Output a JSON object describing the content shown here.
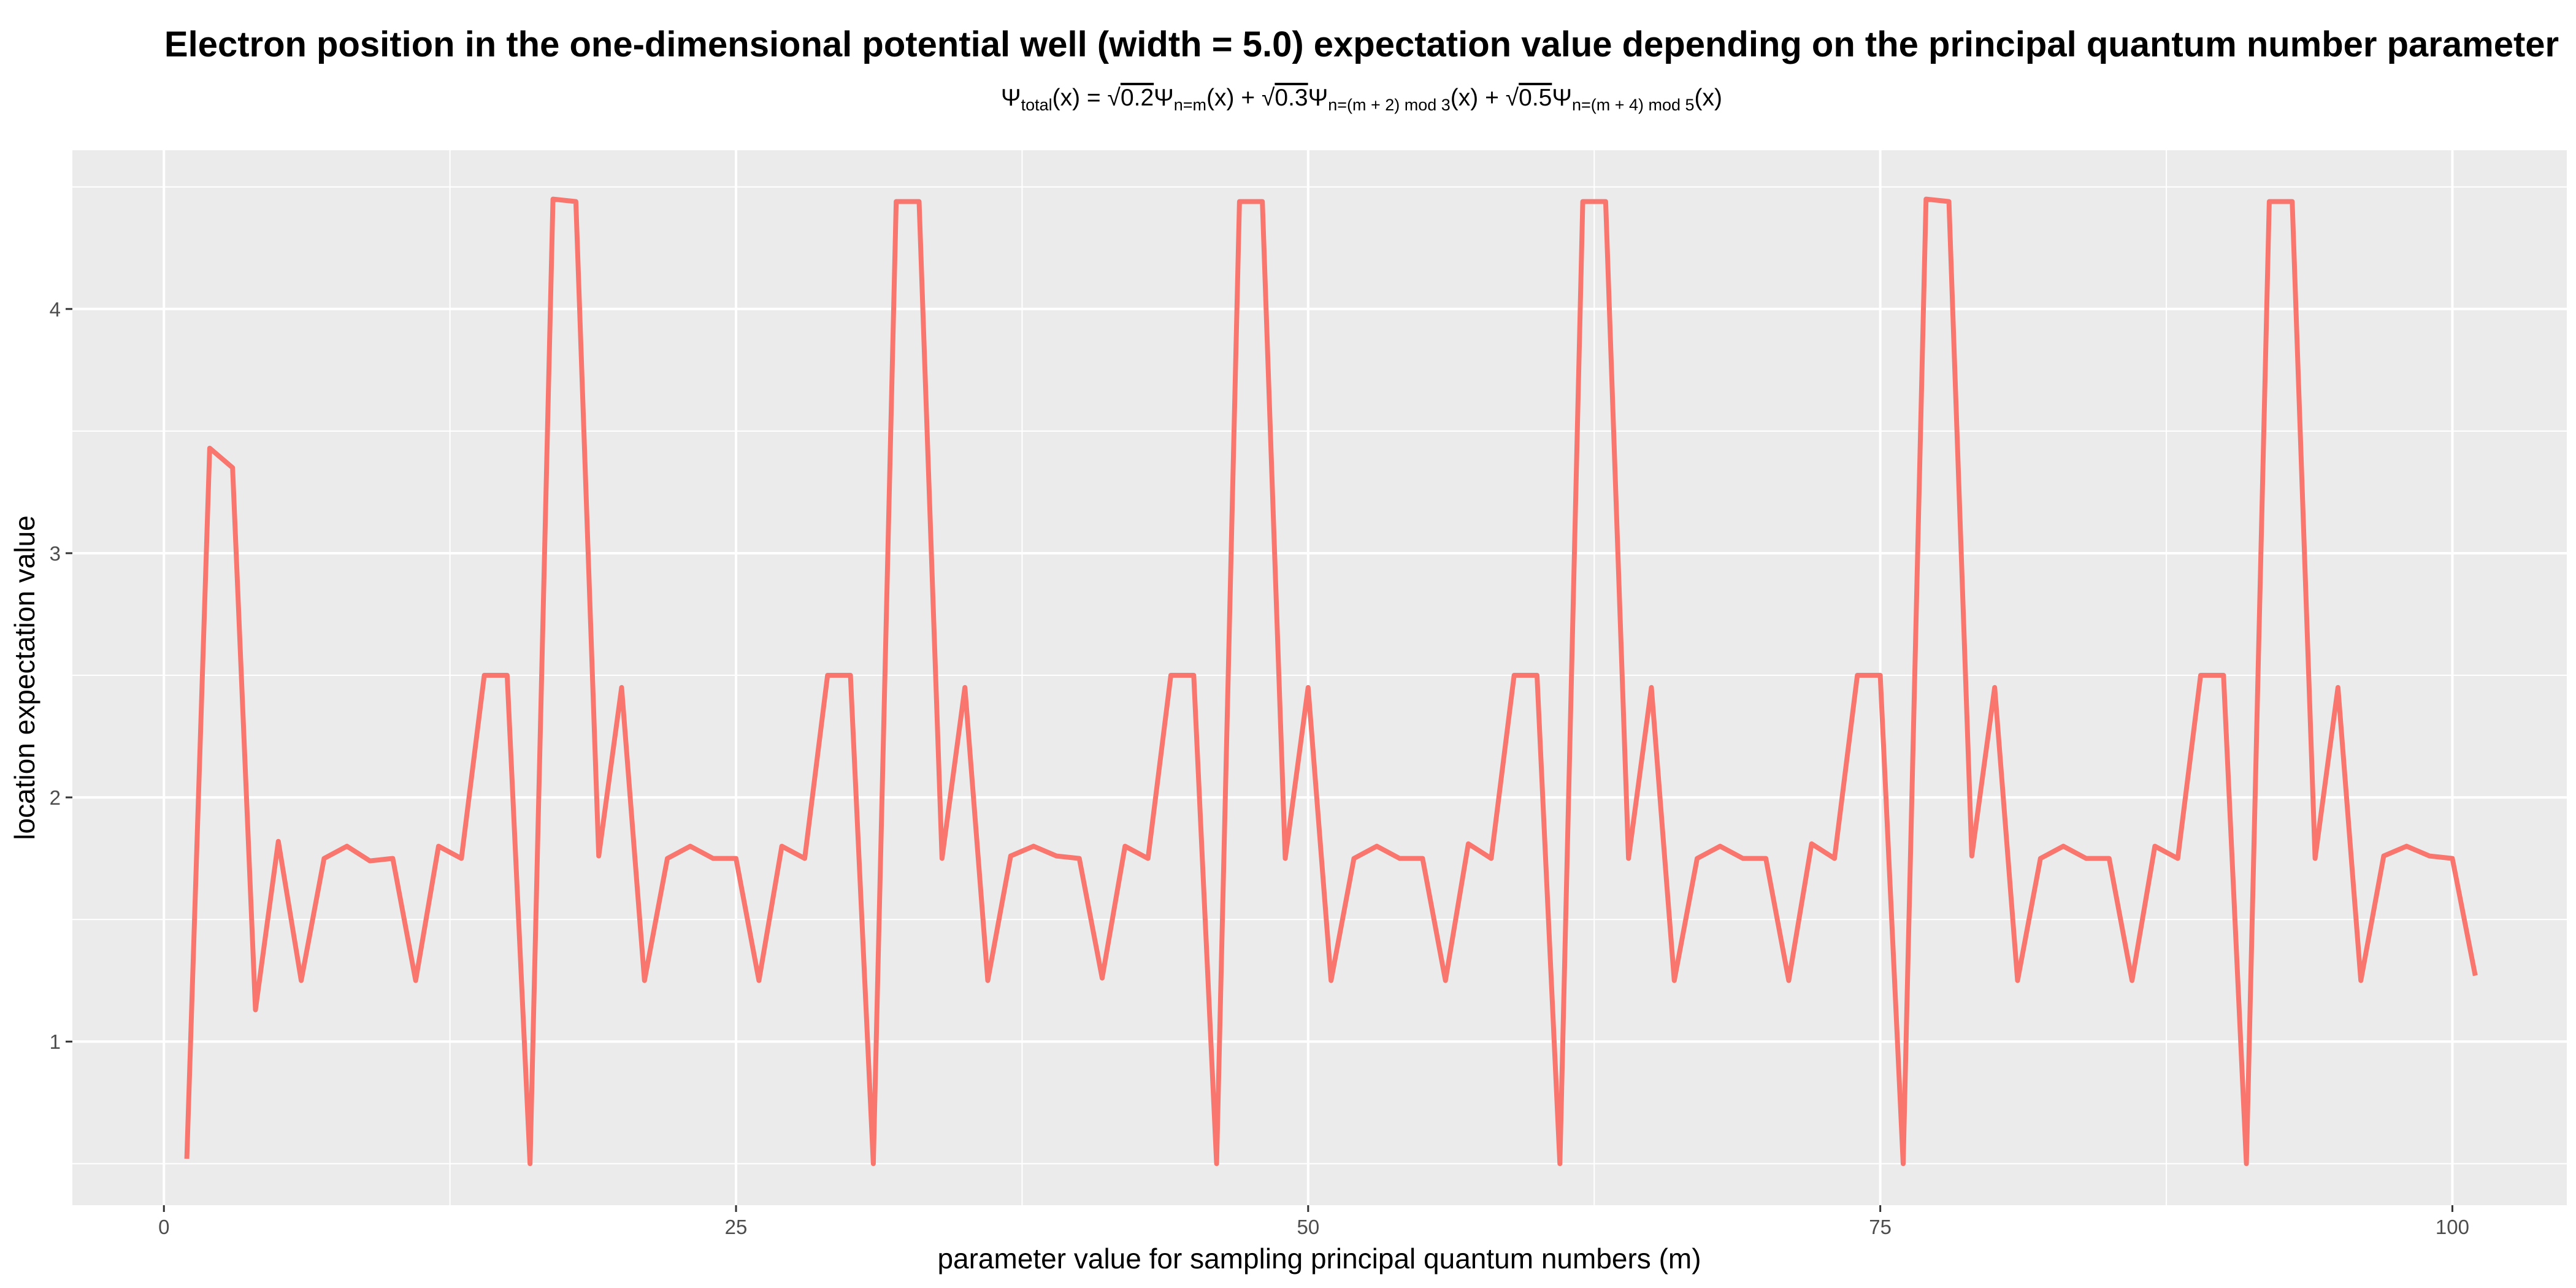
{
  "chart_data": {
    "type": "line",
    "title": "Electron position in the one-dimensional potential well (width = 5.0) expectation value depending on the principal quantum number parameter",
    "subtitle": {
      "psi": "Ψ",
      "total_sub": "total",
      "x_arg": "(x)",
      "equals": " = ",
      "plus": " + ",
      "coef1": "0.2",
      "coef2": "0.3",
      "coef3": "0.5",
      "sub1": "n=m",
      "sub2": "n=(m + 2) mod 3",
      "sub3": "n=(m + 4) mod 5"
    },
    "xlabel": "parameter value for sampling principal quantum numbers (m)",
    "ylabel": "location expectation value",
    "xlim": [
      -4,
      105
    ],
    "ylim": [
      0.33,
      4.65
    ],
    "x_ticks": [
      0,
      25,
      50,
      75,
      100
    ],
    "x_tick_labels": [
      "0",
      "25",
      "50",
      "75",
      "100"
    ],
    "y_ticks": [
      1,
      2,
      3,
      4
    ],
    "y_tick_labels": [
      "1",
      "2",
      "3",
      "4"
    ],
    "grid": true,
    "line_color": "#F8766D",
    "panel_color": "#EBEBEB",
    "x": [
      1,
      2,
      3,
      4,
      5,
      6,
      7,
      8,
      9,
      10,
      11,
      12,
      13,
      14,
      15,
      16,
      17,
      18,
      19,
      20,
      21,
      22,
      23,
      24,
      25,
      26,
      27,
      28,
      29,
      30,
      31,
      32,
      33,
      34,
      35,
      36,
      37,
      38,
      39,
      40,
      41,
      42,
      43,
      44,
      45,
      46,
      47,
      48,
      49,
      50,
      51,
      52,
      53,
      54,
      55,
      56,
      57,
      58,
      59,
      60,
      61,
      62,
      63,
      64,
      65,
      66,
      67,
      68,
      69,
      70,
      71,
      72,
      73,
      74,
      75,
      76,
      77,
      78,
      79,
      80,
      81,
      82,
      83,
      84,
      85,
      86,
      87,
      88,
      89,
      90,
      91,
      92,
      93,
      94,
      95,
      96,
      97,
      98,
      99,
      100,
      101
    ],
    "y": [
      0.52,
      3.43,
      3.35,
      1.13,
      1.82,
      1.25,
      1.75,
      1.8,
      1.74,
      1.75,
      1.25,
      1.8,
      1.75,
      2.5,
      2.5,
      0.5,
      4.45,
      4.44,
      1.76,
      2.45,
      1.25,
      1.75,
      1.8,
      1.75,
      1.75,
      1.25,
      1.8,
      1.75,
      2.5,
      2.5,
      0.5,
      4.44,
      4.44,
      1.75,
      2.45,
      1.25,
      1.76,
      1.8,
      1.76,
      1.75,
      1.26,
      1.8,
      1.75,
      2.5,
      2.5,
      0.5,
      4.44,
      4.44,
      1.75,
      2.45,
      1.25,
      1.75,
      1.8,
      1.75,
      1.75,
      1.25,
      1.81,
      1.75,
      2.5,
      2.5,
      0.5,
      4.44,
      4.44,
      1.75,
      2.45,
      1.25,
      1.75,
      1.8,
      1.75,
      1.75,
      1.25,
      1.81,
      1.75,
      2.5,
      2.5,
      0.5,
      4.45,
      4.44,
      1.76,
      2.45,
      1.25,
      1.75,
      1.8,
      1.75,
      1.75,
      1.25,
      1.8,
      1.75,
      2.5,
      2.5,
      0.5,
      4.44,
      4.44,
      1.75,
      2.45,
      1.25,
      1.76,
      1.8,
      1.76,
      1.75,
      1.27
    ]
  }
}
